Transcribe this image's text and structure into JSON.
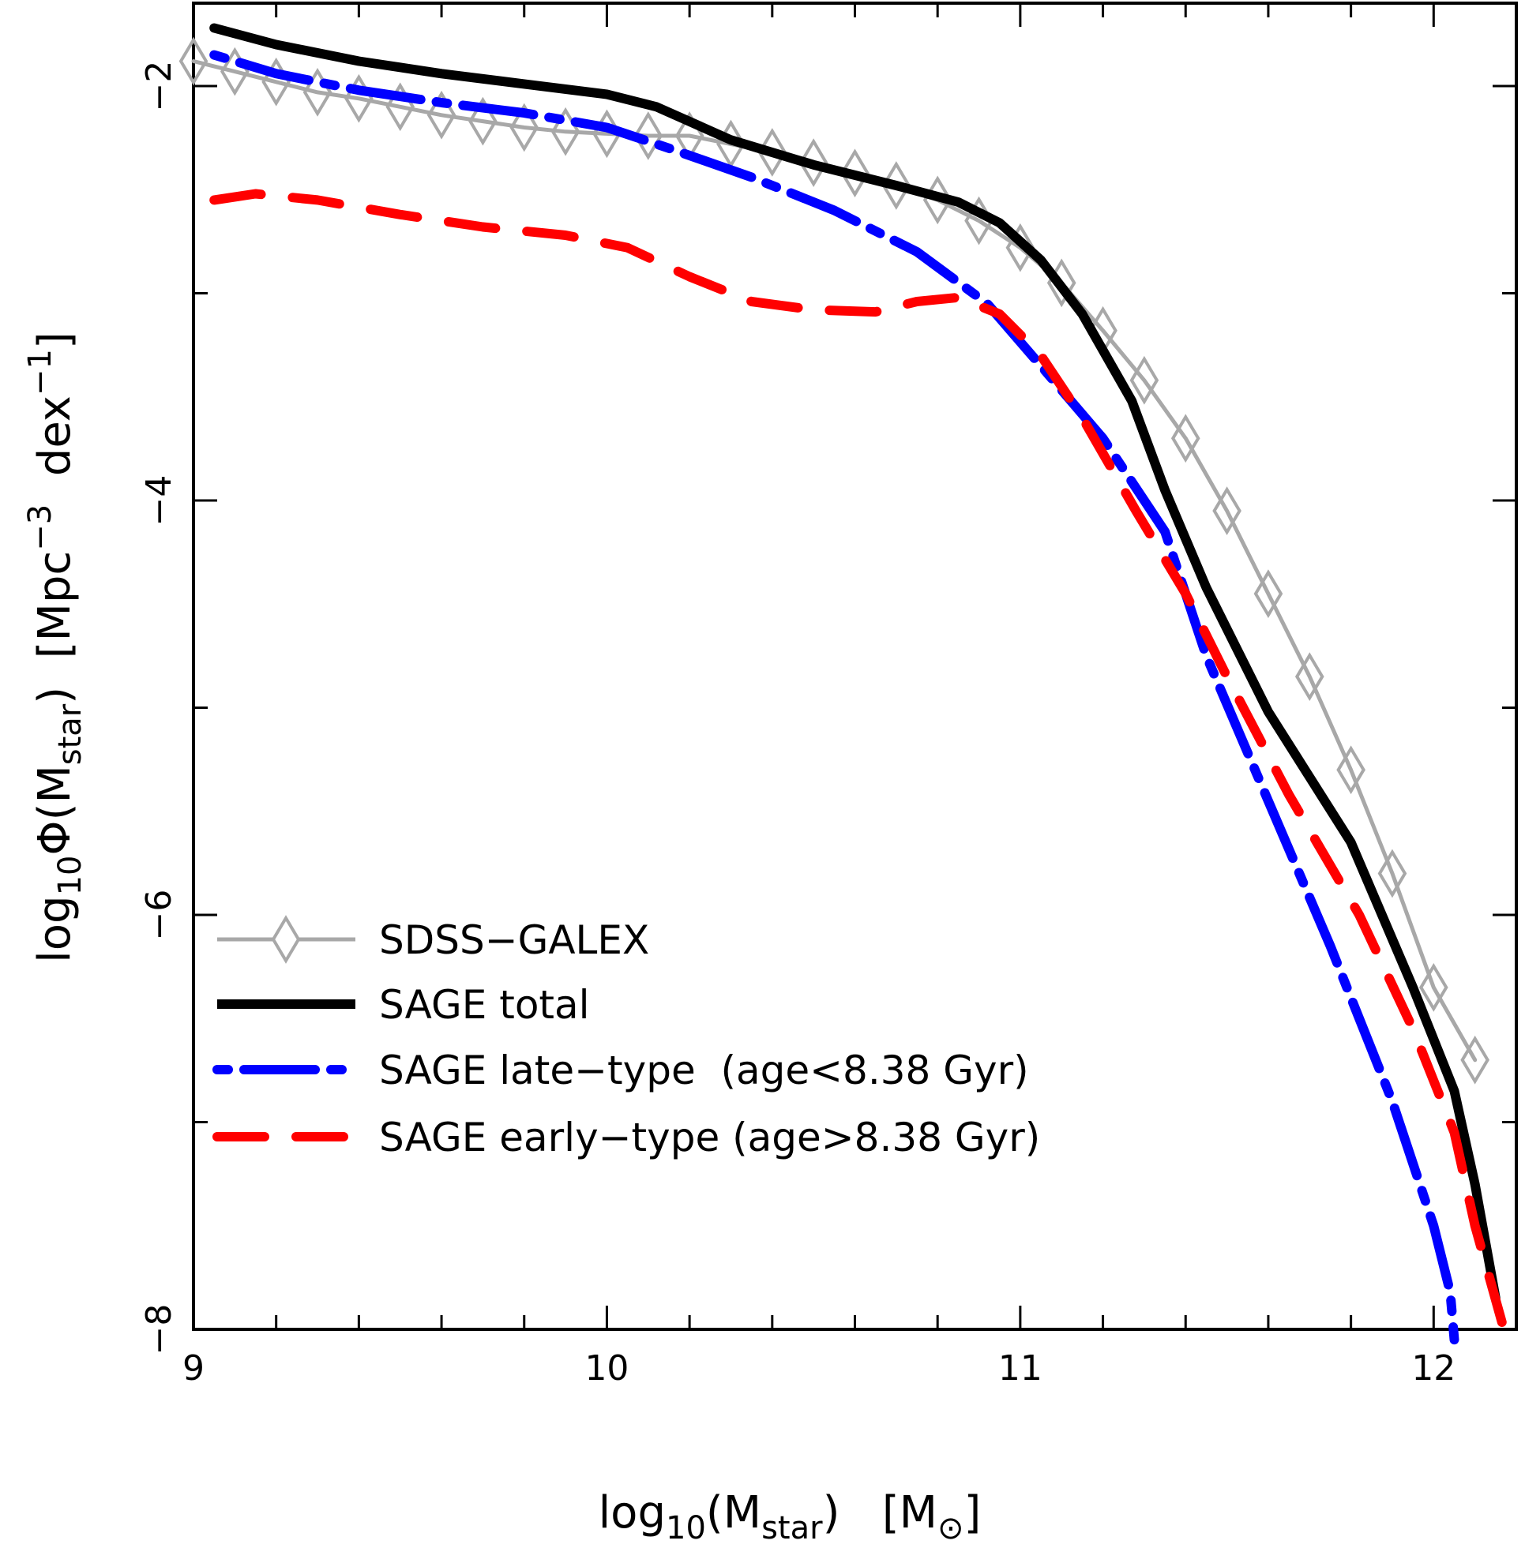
{
  "chart_data": {
    "type": "line",
    "title": "",
    "xlabel": {
      "prefix": "log",
      "sub1": "10",
      "mid": "(M",
      "sub2": "star",
      "suffix": ")   [M",
      "sun_symbol": "⊙",
      "close": "]"
    },
    "ylabel": {
      "prefix": "log",
      "sub1": "10",
      "mid": "Φ(M",
      "sub2": "star",
      "suffix": ")  [Mpc",
      "sup1": "−3",
      "mid2": "  dex",
      "sup2": "−1",
      "close": "]"
    },
    "xlim": [
      9,
      12.2
    ],
    "ylim": [
      -8,
      -1.6
    ],
    "xticks": [
      {
        "value": 9,
        "label": "9"
      },
      {
        "value": 10,
        "label": "10"
      },
      {
        "value": 11,
        "label": "11"
      },
      {
        "value": 12,
        "label": "12"
      }
    ],
    "yticks": [
      {
        "value": -2,
        "label": "−2"
      },
      {
        "value": -4,
        "label": "−4"
      },
      {
        "value": -6,
        "label": "−6"
      },
      {
        "value": -8,
        "label": "−8"
      }
    ],
    "legend_position": "bottom-left",
    "series": [
      {
        "name": "SDSS−GALEX",
        "color": "#a8a8a8",
        "style": "solid-diamond",
        "x": [
          9.0,
          9.1,
          9.2,
          9.3,
          9.4,
          9.5,
          9.6,
          9.7,
          9.8,
          9.9,
          10.0,
          10.1,
          10.2,
          10.3,
          10.4,
          10.5,
          10.6,
          10.7,
          10.8,
          10.9,
          11.0,
          11.1,
          11.2,
          11.3,
          11.4,
          11.5,
          11.6,
          11.7,
          11.8,
          11.9,
          12.0,
          12.1
        ],
        "y": [
          -1.88,
          -1.93,
          -1.98,
          -2.03,
          -2.06,
          -2.1,
          -2.14,
          -2.17,
          -2.2,
          -2.22,
          -2.23,
          -2.24,
          -2.24,
          -2.28,
          -2.32,
          -2.37,
          -2.42,
          -2.48,
          -2.55,
          -2.65,
          -2.78,
          -2.95,
          -3.18,
          -3.42,
          -3.7,
          -4.05,
          -4.45,
          -4.85,
          -5.3,
          -5.8,
          -6.35,
          -6.7
        ]
      },
      {
        "name": "SAGE total",
        "color": "#000000",
        "style": "solid-thick",
        "x": [
          9.05,
          9.2,
          9.4,
          9.6,
          9.8,
          10.0,
          10.12,
          10.3,
          10.5,
          10.7,
          10.85,
          10.95,
          11.05,
          11.15,
          11.27,
          11.35,
          11.45,
          11.6,
          11.8,
          11.95,
          12.05,
          12.1,
          12.15
        ],
        "y": [
          -1.72,
          -1.8,
          -1.88,
          -1.94,
          -1.99,
          -2.04,
          -2.1,
          -2.26,
          -2.38,
          -2.48,
          -2.56,
          -2.66,
          -2.84,
          -3.1,
          -3.52,
          -3.95,
          -4.42,
          -5.02,
          -5.65,
          -6.35,
          -6.85,
          -7.3,
          -7.85
        ]
      },
      {
        "name": "SAGE late−type  (age<8.38 Gyr)",
        "color": "#0000ff",
        "style": "dash-dot",
        "x": [
          9.05,
          9.2,
          9.4,
          9.6,
          9.8,
          10.0,
          10.15,
          10.35,
          10.55,
          10.75,
          10.92,
          11.05,
          11.2,
          11.35,
          11.45,
          11.6,
          11.75,
          11.9,
          12.0,
          12.04,
          12.05
        ],
        "y": [
          -1.85,
          -1.94,
          -2.02,
          -2.08,
          -2.13,
          -2.2,
          -2.3,
          -2.44,
          -2.6,
          -2.8,
          -3.05,
          -3.35,
          -3.7,
          -4.15,
          -4.75,
          -5.45,
          -6.15,
          -6.9,
          -7.5,
          -7.82,
          -8.05
        ]
      },
      {
        "name": "SAGE early−type (age>8.38 Gyr)",
        "color": "#ff0000",
        "style": "dashed",
        "x": [
          9.05,
          9.15,
          9.3,
          9.5,
          9.7,
          9.9,
          10.05,
          10.2,
          10.35,
          10.5,
          10.65,
          10.75,
          10.85,
          10.95,
          11.05,
          11.15,
          11.28,
          11.4,
          11.5,
          11.65,
          11.82,
          11.95,
          12.05,
          12.1,
          12.17
        ],
        "y": [
          -2.55,
          -2.52,
          -2.55,
          -2.62,
          -2.68,
          -2.72,
          -2.78,
          -2.92,
          -3.04,
          -3.08,
          -3.09,
          -3.04,
          -3.02,
          -3.1,
          -3.3,
          -3.6,
          -4.05,
          -4.45,
          -4.85,
          -5.42,
          -6.0,
          -6.55,
          -7.05,
          -7.5,
          -8.0
        ]
      }
    ]
  }
}
